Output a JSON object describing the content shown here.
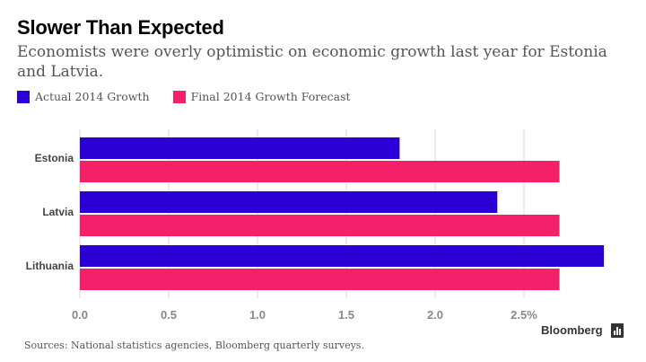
{
  "title": "Slower Than Expected",
  "subtitle": "Economists were overly optimistic on economic growth last year for Estonia and Latvia.",
  "source": "Sources: National statistics agencies, Bloomberg quarterly surveys.",
  "brand": "Bloomberg",
  "brand_icon": "bloomberg-chart-icon",
  "colors": {
    "actual": "#2a00d6",
    "forecast": "#f4206a",
    "grid": "#d9d9d9",
    "axis_text": "#888888"
  },
  "chart_data": {
    "type": "bar",
    "orientation": "horizontal",
    "categories": [
      "Estonia",
      "Latvia",
      "Lithuania"
    ],
    "series": [
      {
        "name": "Actual 2014 Growth",
        "values": [
          1.8,
          2.35,
          2.95
        ]
      },
      {
        "name": "Final 2014 Growth Forecast",
        "values": [
          2.7,
          2.7,
          2.7
        ]
      }
    ],
    "x_ticks": [
      "0.0",
      "0.5",
      "1.0",
      "1.5",
      "2.0",
      "2.5%"
    ],
    "x_tick_values": [
      0,
      0.5,
      1.0,
      1.5,
      2.0,
      2.5
    ],
    "xlim": [
      0,
      3.0
    ],
    "legend_position": "top-left",
    "grid": true
  }
}
